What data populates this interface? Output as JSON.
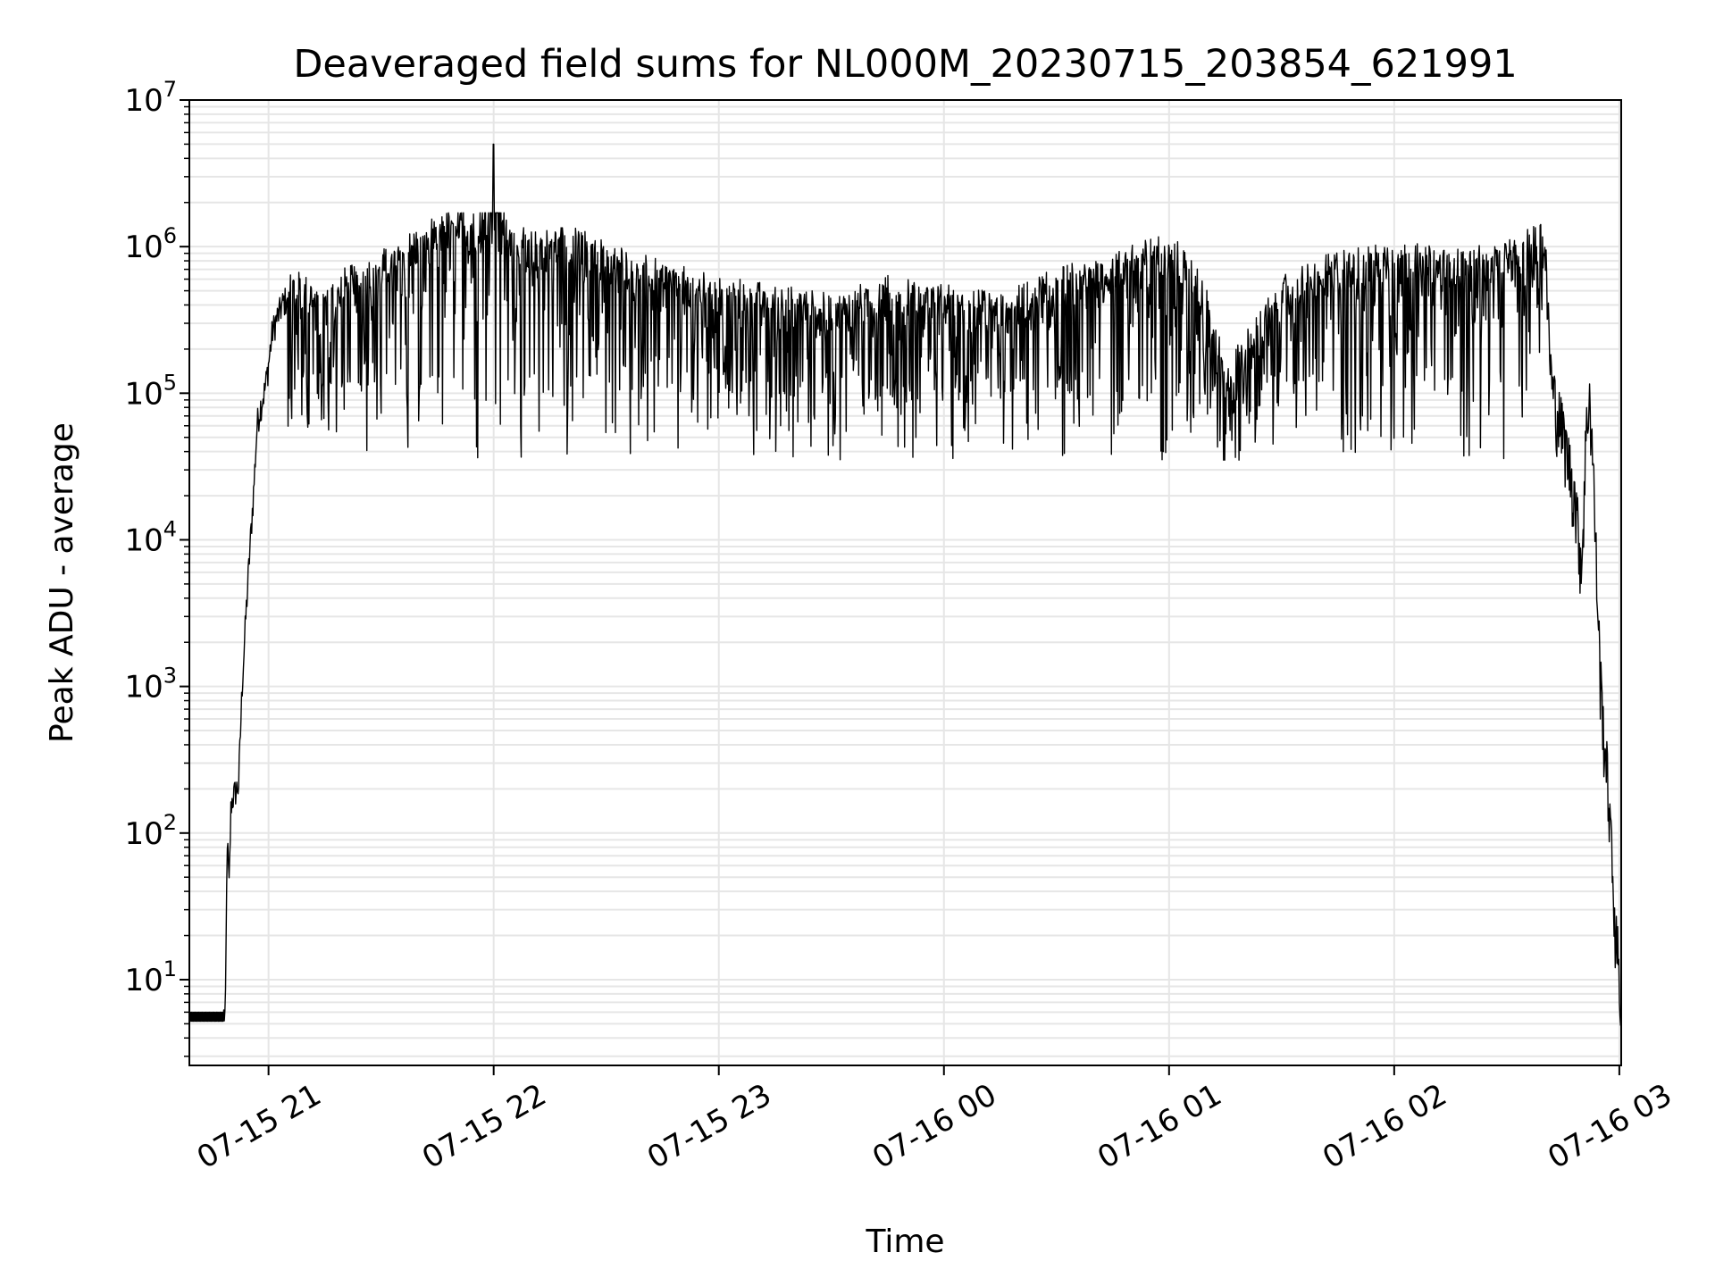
{
  "chart_data": {
    "type": "line",
    "title": "Deaveraged field sums for NL000M_20230715_203854_621991",
    "xlabel": "Time",
    "ylabel": "Peak ADU - average",
    "y_scale": "log",
    "ylim": [
      2.6,
      10000000
    ],
    "xlim": [
      "2023-07-15 20:38:54",
      "2023-07-16 03:00:30"
    ],
    "grid": true,
    "line_color": "#000000",
    "x_ticks": [
      {
        "label": "07-15 21",
        "value": "2023-07-15 21:00"
      },
      {
        "label": "07-15 22",
        "value": "2023-07-15 22:00"
      },
      {
        "label": "07-15 23",
        "value": "2023-07-15 23:00"
      },
      {
        "label": "07-16 00",
        "value": "2023-07-16 00:00"
      },
      {
        "label": "07-16 01",
        "value": "2023-07-16 01:00"
      },
      {
        "label": "07-16 02",
        "value": "2023-07-16 02:00"
      },
      {
        "label": "07-16 03",
        "value": "2023-07-16 03:00"
      }
    ],
    "y_ticks": [
      {
        "base": "10",
        "exp": "1",
        "value": 10
      },
      {
        "base": "10",
        "exp": "2",
        "value": 100
      },
      {
        "base": "10",
        "exp": "3",
        "value": 1000
      },
      {
        "base": "10",
        "exp": "4",
        "value": 10000
      },
      {
        "base": "10",
        "exp": "5",
        "value": 100000
      },
      {
        "base": "10",
        "exp": "6",
        "value": 1000000
      },
      {
        "base": "10",
        "exp": "7",
        "value": 10000000
      }
    ],
    "x": [
      "2023-07-15 20:39:00",
      "2023-07-15 20:48:00",
      "2023-07-15 20:48:30",
      "2023-07-15 20:49:00",
      "2023-07-15 20:49:30",
      "2023-07-15 20:50:00",
      "2023-07-15 20:51:00",
      "2023-07-15 20:52:00",
      "2023-07-15 20:53:00",
      "2023-07-15 20:54:00",
      "2023-07-15 20:55:00",
      "2023-07-15 20:56:00",
      "2023-07-15 20:57:00",
      "2023-07-15 20:58:00",
      "2023-07-15 20:59:00",
      "2023-07-15 21:00:00",
      "2023-07-15 21:01:00",
      "2023-07-15 21:02:00",
      "2023-07-15 21:04:00",
      "2023-07-15 21:06:00",
      "2023-07-15 21:10:00",
      "2023-07-15 21:15:00",
      "2023-07-15 21:20:00",
      "2023-07-15 21:25:00",
      "2023-07-15 21:30:00",
      "2023-07-15 21:35:00",
      "2023-07-15 21:40:00",
      "2023-07-15 21:45:00",
      "2023-07-15 21:50:00",
      "2023-07-15 21:55:00",
      "2023-07-15 21:58:00",
      "2023-07-15 22:00:00",
      "2023-07-15 22:03:00",
      "2023-07-15 22:10:00",
      "2023-07-15 22:20:00",
      "2023-07-15 22:30:00",
      "2023-07-15 22:45:00",
      "2023-07-15 23:00:00",
      "2023-07-15 23:15:00",
      "2023-07-15 23:30:00",
      "2023-07-15 23:45:00",
      "2023-07-16 00:00:00",
      "2023-07-16 00:15:00",
      "2023-07-16 00:30:00",
      "2023-07-16 00:45:00",
      "2023-07-16 01:00:00",
      "2023-07-16 01:10:00",
      "2023-07-16 01:15:00",
      "2023-07-16 01:30:00",
      "2023-07-16 01:45:00",
      "2023-07-16 02:00:00",
      "2023-07-16 02:15:00",
      "2023-07-16 02:30:00",
      "2023-07-16 02:35:00",
      "2023-07-16 02:40:00",
      "2023-07-16 02:42:00",
      "2023-07-16 02:45:00",
      "2023-07-16 02:48:00",
      "2023-07-16 02:50:00",
      "2023-07-16 02:51:00",
      "2023-07-16 02:52:00",
      "2023-07-16 02:53:00",
      "2023-07-16 02:54:00",
      "2023-07-16 02:55:00",
      "2023-07-16 02:56:00",
      "2023-07-16 02:57:00",
      "2023-07-16 02:58:00",
      "2023-07-16 02:59:00",
      "2023-07-16 03:00:00",
      "2023-07-16 03:00:20"
    ],
    "y": [
      5.5,
      5.5,
      5.5,
      90,
      40,
      150,
      180,
      200,
      1000,
      3000,
      8000,
      20000,
      60000,
      80000,
      100000,
      150000,
      250000,
      300000,
      400000,
      450000,
      400000,
      350000,
      450000,
      500000,
      600000,
      700000,
      900000,
      1000000,
      1200000,
      1100000,
      1300000,
      5000000,
      1000000,
      800000,
      900000,
      700000,
      500000,
      400000,
      350000,
      300000,
      400000,
      350000,
      300000,
      450000,
      600000,
      800000,
      400000,
      100000,
      400000,
      600000,
      700000,
      600000,
      700000,
      800000,
      1000000,
      100000,
      50000,
      20000,
      6000,
      40000,
      100000,
      30000,
      5000,
      1000,
      400,
      200,
      60,
      20,
      10,
      5
    ],
    "noise": {
      "low": 35000,
      "high": 1700000
    }
  }
}
